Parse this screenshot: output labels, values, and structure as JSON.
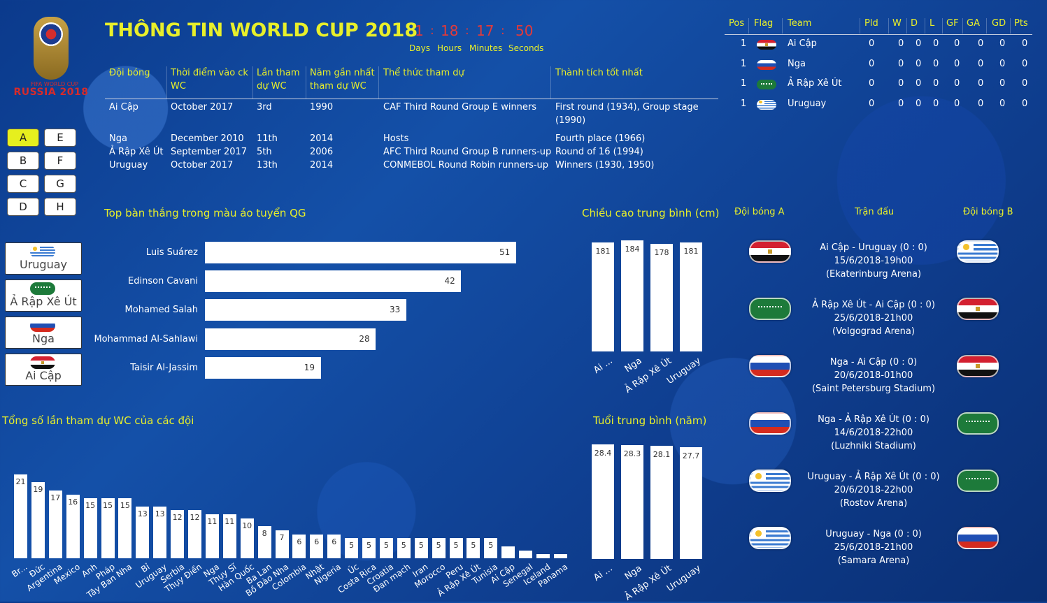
{
  "title": "THÔNG TIN WORLD CUP 2018",
  "logo": {
    "line1": "FIFA WORLD CUP",
    "line2": "RUSSIA 2018"
  },
  "countdown": {
    "values": [
      "1",
      "18",
      "17",
      "50"
    ],
    "labels": [
      "Days",
      "Hours",
      "Minutes",
      "Seconds"
    ]
  },
  "info": {
    "headers": [
      "Đội bóng",
      "Thời điểm vào ck WC",
      "Lần tham dự WC",
      "Năm gần nhất tham dự WC",
      "Thể thức tham dự",
      "Thành tích tốt nhất"
    ],
    "rows": [
      [
        "Ai Cập",
        "October 2017",
        "3rd",
        "1990",
        "CAF Third Round Group E winners",
        "First round (1934), Group stage (1990)"
      ],
      [
        "Nga",
        "December 2010",
        "11th",
        "2014",
        "Hosts",
        "Fourth place (1966)"
      ],
      [
        "Ả Rập Xê Út",
        "September 2017",
        "5th",
        "2006",
        "AFC Third Round Group B runners-up",
        "Round of 16 (1994)"
      ],
      [
        "Uruguay",
        "October 2017",
        "13th",
        "2014",
        "CONMEBOL Round Robin runners-up",
        "Winners (1930, 1950)"
      ]
    ]
  },
  "groups": [
    "A",
    "E",
    "B",
    "F",
    "C",
    "G",
    "D",
    "H"
  ],
  "active_group": "A",
  "team_cards": [
    {
      "name": "Uruguay",
      "flag": "uy"
    },
    {
      "name": "Ả Rập Xê Út",
      "flag": "sa"
    },
    {
      "name": "Nga",
      "flag": "ru"
    },
    {
      "name": "Ai Cập",
      "flag": "eg"
    }
  ],
  "standings": {
    "headers": [
      "Pos",
      "Flag",
      "Team",
      "Pld",
      "W",
      "D",
      "L",
      "GF",
      "GA",
      "GD",
      "Pts"
    ],
    "rows": [
      {
        "pos": "1",
        "flag": "eg",
        "team": "Ai Cập",
        "stats": [
          "0",
          "0",
          "0",
          "0",
          "0",
          "0",
          "0",
          "0"
        ]
      },
      {
        "pos": "1",
        "flag": "ru",
        "team": "Nga",
        "stats": [
          "0",
          "0",
          "0",
          "0",
          "0",
          "0",
          "0",
          "0"
        ]
      },
      {
        "pos": "1",
        "flag": "sa",
        "team": "Ả Rập Xê Út",
        "stats": [
          "0",
          "0",
          "0",
          "0",
          "0",
          "0",
          "0",
          "0"
        ]
      },
      {
        "pos": "1",
        "flag": "uy",
        "team": "Uruguay",
        "stats": [
          "0",
          "0",
          "0",
          "0",
          "0",
          "0",
          "0",
          "0"
        ]
      }
    ]
  },
  "chart_data": [
    {
      "type": "bar",
      "orientation": "horizontal",
      "title": "Top bàn thắng trong màu áo tuyển QG",
      "categories": [
        "Luis Suárez",
        "Edinson Cavani",
        "Mohamed Salah",
        "Mohammad Al-Sahlawi",
        "Taisir Al-Jassim"
      ],
      "values": [
        51,
        42,
        33,
        28,
        19
      ],
      "xlim": [
        0,
        60
      ]
    },
    {
      "type": "bar",
      "title": "Chiều cao trung bình (cm)",
      "categories": [
        "Ai ...",
        "Nga",
        "Ả Rập Xê Út",
        "Uruguay"
      ],
      "values": [
        181,
        184,
        178,
        181
      ],
      "ylim": [
        0,
        184
      ]
    },
    {
      "type": "bar",
      "title": "Tuổi trung bình (năm)",
      "categories": [
        "Ai ...",
        "Nga",
        "Ả Rập Xê Út",
        "Uruguay"
      ],
      "values": [
        28.4,
        28.3,
        28.1,
        27.7
      ],
      "ylim": [
        0,
        28.4
      ]
    },
    {
      "type": "bar",
      "title": "Tổng số lần tham dự WC của các đội",
      "categories": [
        "Br...",
        "Đức",
        "Argentina",
        "Mexico",
        "Anh",
        "Pháp",
        "Tây Ban Nha",
        "Bỉ",
        "Uruguay",
        "Serbia",
        "Thụy Điển",
        "Nga",
        "Thụy Sĩ",
        "Hàn Quốc",
        "Ba Lan",
        "Bồ Đào Nha",
        "Colombia",
        "Nhật",
        "Nigeria",
        "Úc",
        "Costa Rica",
        "Croatia",
        "Đan mạch",
        "Iran",
        "Morocco",
        "Peru",
        "Ả Rập Xê Út",
        "Tunisia",
        "Ai Cập",
        "Senegal",
        "Iceland",
        "Panama"
      ],
      "values": [
        21,
        19,
        17,
        16,
        15,
        15,
        15,
        13,
        13,
        12,
        12,
        11,
        11,
        10,
        8,
        7,
        6,
        6,
        6,
        5,
        5,
        5,
        5,
        5,
        5,
        5,
        5,
        5,
        3,
        2,
        1,
        1
      ],
      "value_labels_shown": 28,
      "ylim": [
        0,
        21
      ]
    }
  ],
  "matches": {
    "headers": [
      "Đội bóng A",
      "Trận đấu",
      "Đội bóng B"
    ],
    "items": [
      {
        "a": "eg",
        "b": "uy",
        "line1": "Ai Cập - Uruguay (0 : 0)",
        "line2": "15/6/2018-19h00",
        "line3": "(Ekaterinburg Arena)"
      },
      {
        "a": "sa",
        "b": "eg",
        "line1": "Ả Rập Xê Út - Ai Cập (0 : 0)",
        "line2": "25/6/2018-21h00",
        "line3": "(Volgograd Arena)"
      },
      {
        "a": "ru",
        "b": "eg",
        "line1": "Nga - Ai Cập (0 : 0)",
        "line2": "20/6/2018-01h00",
        "line3": "(Saint Petersburg Stadium)"
      },
      {
        "a": "ru",
        "b": "sa",
        "line1": "Nga - Ả Rập Xê Út (0 : 0)",
        "line2": "14/6/2018-22h00",
        "line3": "(Luzhniki Stadium)"
      },
      {
        "a": "uy",
        "b": "sa",
        "line1": "Uruguay - Ả Rập Xê Út (0 : 0)",
        "line2": "20/6/2018-22h00",
        "line3": "(Rostov Arena)"
      },
      {
        "a": "uy",
        "b": "ru",
        "line1": "Uruguay - Nga (0 : 0)",
        "line2": "25/6/2018-21h00",
        "line3": "(Samara Arena)"
      }
    ]
  }
}
